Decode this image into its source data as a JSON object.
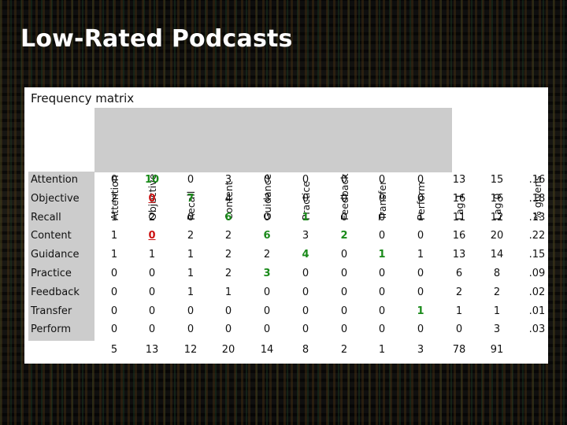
{
  "slide": {
    "title": "Low-Rated Podcasts"
  },
  "panel": {
    "title": "Frequency matrix"
  },
  "columns": [
    "Attention",
    "Objective",
    "Recall",
    "Content",
    "Guidance",
    "Practice",
    "Feedback",
    "Transfer",
    "Perform",
    "Lag 1",
    "Lag 0",
    "% givens"
  ],
  "rows": [
    {
      "label": "Attention",
      "values": [
        "0",
        "10",
        "0",
        "3",
        "0",
        "0",
        "0",
        "0",
        "0",
        "13",
        "15",
        ".16"
      ],
      "styles": [
        "",
        "green",
        "",
        "",
        "",
        "",
        "",
        "",
        "",
        "",
        "",
        ""
      ]
    },
    {
      "label": "Objective",
      "values": [
        "2",
        "0",
        "7",
        "4",
        "3",
        "0",
        "0",
        "0",
        "0",
        "16",
        "16",
        ".18"
      ],
      "styles": [
        "",
        "red",
        "green",
        "",
        "",
        "",
        "",
        "",
        "",
        "",
        "",
        ""
      ]
    },
    {
      "label": "Recall",
      "values": [
        "1",
        "2",
        "0",
        "6",
        "0",
        "1",
        "0",
        "0",
        "1",
        "11",
        "12",
        ".13"
      ],
      "styles": [
        "",
        "",
        "",
        "green",
        "",
        "green",
        "",
        "",
        "",
        "",
        "",
        ""
      ]
    },
    {
      "label": "Content",
      "values": [
        "1",
        "0",
        "2",
        "2",
        "6",
        "3",
        "2",
        "0",
        "0",
        "16",
        "20",
        ".22"
      ],
      "styles": [
        "",
        "red",
        "",
        "",
        "green",
        "",
        "green",
        "",
        "",
        "",
        "",
        ""
      ]
    },
    {
      "label": "Guidance",
      "values": [
        "1",
        "1",
        "1",
        "2",
        "2",
        "4",
        "0",
        "1",
        "1",
        "13",
        "14",
        ".15"
      ],
      "styles": [
        "",
        "",
        "",
        "",
        "",
        "green",
        "",
        "green",
        "",
        "",
        "",
        ""
      ]
    },
    {
      "label": "Practice",
      "values": [
        "0",
        "0",
        "1",
        "2",
        "3",
        "0",
        "0",
        "0",
        "0",
        "6",
        "8",
        ".09"
      ],
      "styles": [
        "",
        "",
        "",
        "",
        "green",
        "",
        "",
        "",
        "",
        "",
        "",
        ""
      ]
    },
    {
      "label": "Feedback",
      "values": [
        "0",
        "0",
        "1",
        "1",
        "0",
        "0",
        "0",
        "0",
        "0",
        "2",
        "2",
        ".02"
      ],
      "styles": [
        "",
        "",
        "",
        "",
        "",
        "",
        "",
        "",
        "",
        "",
        "",
        ""
      ]
    },
    {
      "label": "Transfer",
      "values": [
        "0",
        "0",
        "0",
        "0",
        "0",
        "0",
        "0",
        "0",
        "1",
        "1",
        "1",
        ".01"
      ],
      "styles": [
        "",
        "",
        "",
        "",
        "",
        "",
        "",
        "",
        "green",
        "",
        "",
        ""
      ]
    },
    {
      "label": "Perform",
      "values": [
        "0",
        "0",
        "0",
        "0",
        "0",
        "0",
        "0",
        "0",
        "0",
        "0",
        "3",
        ".03"
      ],
      "styles": [
        "",
        "",
        "",
        "",
        "",
        "",
        "",
        "",
        "",
        "",
        "",
        ""
      ]
    }
  ],
  "totals": [
    "5",
    "13",
    "12",
    "20",
    "14",
    "8",
    "2",
    "1",
    "3",
    "78",
    "91",
    ""
  ]
}
